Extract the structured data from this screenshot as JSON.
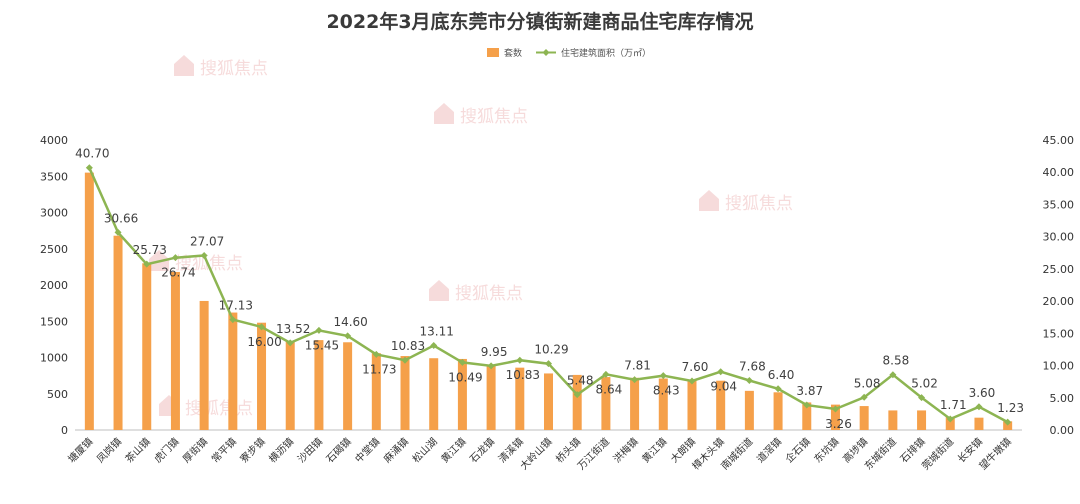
{
  "chart_data": {
    "type": "bar",
    "title": "2022年3月底东莞市分镇街新建商品住宅库存情况",
    "legend": {
      "placement": "top-center",
      "bar_label": "套数",
      "line_label": "住宅建筑面积（万㎡）"
    },
    "categories": [
      "塘厦镇",
      "凤岗镇",
      "茶山镇",
      "虎门镇",
      "厚街镇",
      "常平镇",
      "寮步镇",
      "横沥镇",
      "沙田镇",
      "石碣镇",
      "中堂镇",
      "麻涌镇",
      "松山湖",
      "黄江镇",
      "石龙镇",
      "清溪镇",
      "大岭山镇",
      "桥头镇",
      "万江街道",
      "洪梅镇",
      "黄江镇",
      "大朗镇",
      "樟木头镇",
      "南城街道",
      "道滘镇",
      "企石镇",
      "东坑镇",
      "高埗镇",
      "东城街道",
      "石排镇",
      "莞城街道",
      "长安镇",
      "望牛墩镇"
    ],
    "series": [
      {
        "name": "套数",
        "type": "bar",
        "axis": "left",
        "color": "#f5a04a",
        "values": [
          3550,
          2680,
          2300,
          2180,
          1780,
          1620,
          1480,
          1230,
          1240,
          1210,
          1060,
          1020,
          990,
          980,
          900,
          860,
          780,
          760,
          730,
          720,
          710,
          690,
          680,
          540,
          520,
          380,
          350,
          330,
          270,
          270,
          180,
          170,
          120
        ]
      },
      {
        "name": "住宅建筑面积（万㎡）",
        "type": "line",
        "axis": "right",
        "color": "#8db552",
        "values": [
          40.7,
          30.66,
          25.73,
          26.74,
          27.07,
          17.13,
          16.0,
          13.52,
          15.45,
          14.6,
          11.73,
          10.83,
          13.11,
          10.49,
          9.95,
          10.83,
          10.29,
          5.48,
          8.64,
          7.81,
          8.43,
          7.6,
          9.04,
          7.68,
          6.4,
          3.87,
          3.26,
          5.08,
          8.58,
          5.02,
          1.71,
          3.6,
          1.23
        ],
        "labels": [
          "40.70",
          "30.66",
          "25.73",
          "26.74",
          "27.07",
          "17.13",
          "16.00",
          "13.52",
          "15.45",
          "14.60",
          "11.73",
          "10.83",
          "13.11",
          "10.49",
          "9.95",
          "10.83",
          "10.29",
          "5.48",
          "8.64",
          "7.81",
          "8.43",
          "7.60",
          "9.04",
          "7.68",
          "6.40",
          "3.87",
          "3.26",
          "5.08",
          "8.58",
          "5.02",
          "1.71",
          "3.60",
          "1.23"
        ]
      }
    ],
    "y_left": {
      "min": 0,
      "max": 4000,
      "ticks": [
        "0",
        "500",
        "1000",
        "1500",
        "2000",
        "2500",
        "3000",
        "3500",
        "4000"
      ]
    },
    "y_right": {
      "min": 0,
      "max": 45,
      "ticks": [
        "0.00",
        "5.00",
        "10.00",
        "15.00",
        "20.00",
        "25.00",
        "30.00",
        "35.00",
        "40.00",
        "45.00"
      ]
    },
    "grid": false
  },
  "watermark": "搜狐焦点"
}
